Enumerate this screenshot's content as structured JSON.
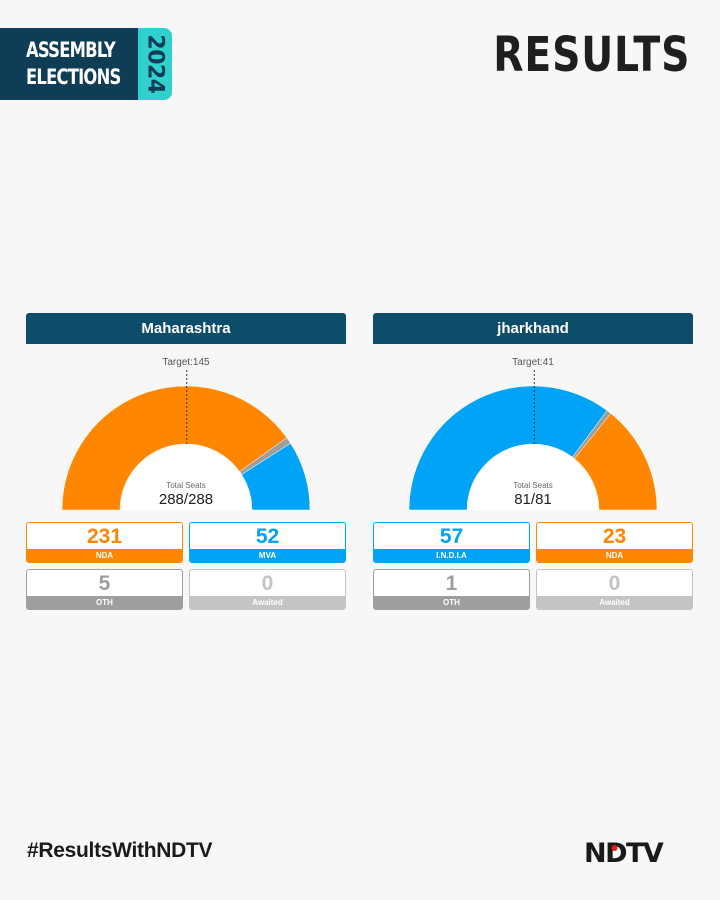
{
  "header": {
    "brand_line1": "ASSEMBLY",
    "brand_line2": "ELECTIONS",
    "brand_year": "2024",
    "title": "RESULTS"
  },
  "colors": {
    "navy": "#0e4d69",
    "teal": "#2fd0cd",
    "nda": "#ff8600",
    "alliance": "#00a3f5",
    "oth": "#9e9e9e",
    "awaited": "#c4c4c4"
  },
  "chart_data": [
    {
      "type": "pie",
      "variant": "semi-donut",
      "title": "Maharashtra",
      "target_label": "Target:145",
      "total_label": "Total Seats",
      "total_value": "288/288",
      "total_seats": 288,
      "target": 145,
      "slices": [
        {
          "name": "NDA",
          "value": 231,
          "color": "#ff8600"
        },
        {
          "name": "OTH",
          "value": 5,
          "color": "#9e9e9e"
        },
        {
          "name": "MVA",
          "value": 52,
          "color": "#00a3f5"
        }
      ],
      "cards": [
        {
          "label": "NDA",
          "value": "231",
          "color": "#ff8600",
          "filled": true
        },
        {
          "label": "MVA",
          "value": "52",
          "color": "#00a3f5",
          "filled": true
        },
        {
          "label": "OTH",
          "value": "5",
          "color": "#9e9e9e",
          "filled": true
        },
        {
          "label": "Awaited",
          "value": "0",
          "color": "#c4c4c4",
          "filled": false
        }
      ]
    },
    {
      "type": "pie",
      "variant": "semi-donut",
      "title": "jharkhand",
      "target_label": "Target:41",
      "total_label": "Total Seats",
      "total_value": "81/81",
      "total_seats": 81,
      "target": 41,
      "slices": [
        {
          "name": "I.N.D.I.A",
          "value": 57,
          "color": "#00a3f5"
        },
        {
          "name": "OTH",
          "value": 1,
          "color": "#9e9e9e"
        },
        {
          "name": "NDA",
          "value": 23,
          "color": "#ff8600"
        }
      ],
      "cards": [
        {
          "label": "I.N.D.I.A",
          "value": "57",
          "color": "#00a3f5",
          "filled": true
        },
        {
          "label": "NDA",
          "value": "23",
          "color": "#ff8600",
          "filled": true
        },
        {
          "label": "OTH",
          "value": "1",
          "color": "#9e9e9e",
          "filled": true
        },
        {
          "label": "Awaited",
          "value": "0",
          "color": "#c4c4c4",
          "filled": false
        }
      ]
    }
  ],
  "footer": {
    "hashtag": "#ResultsWithNDTV",
    "logo_text": "NDTV"
  }
}
